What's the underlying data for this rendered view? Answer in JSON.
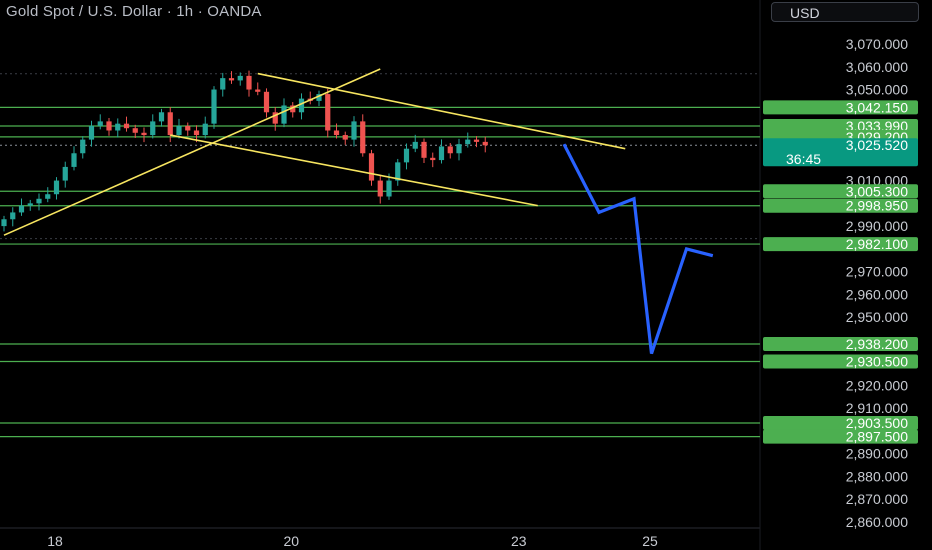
{
  "header": {
    "title": "Gold Spot / U.S. Dollar · 1h · OANDA",
    "currency": "USD"
  },
  "colors": {
    "background": "#000000",
    "up": "#26a69a",
    "down": "#ef5350",
    "level_line": "#4caf50",
    "tag": "#4caf50",
    "last_tag": "#089981",
    "trend": "#f7e560",
    "projection": "#2962ff"
  },
  "chart_data": {
    "type": "candlestick",
    "y_ticks": [
      "3,070.000",
      "3,060.000",
      "3,050.000",
      "3,010.000",
      "2,990.000",
      "2,970.000",
      "2,960.000",
      "2,950.000",
      "2,920.000",
      "2,910.000",
      "2,890.000",
      "2,880.000",
      "2,870.000",
      "2,860.000"
    ],
    "y_tick_values": [
      3070,
      3060,
      3050,
      3010,
      2990,
      2970,
      2960,
      2950,
      2920,
      2910,
      2890,
      2880,
      2870,
      2860
    ],
    "x_labels": [
      {
        "label": "18",
        "index": 4
      },
      {
        "label": "20",
        "index": 31
      },
      {
        "label": "23",
        "index": 57
      },
      {
        "label": "25",
        "index": 72
      }
    ],
    "levels": [
      {
        "value": 3042.15,
        "label": "3,042.150"
      },
      {
        "value": 3033.99,
        "label": "3,033.990"
      },
      {
        "value": 3029.2,
        "label": "3,029.200"
      },
      {
        "value": 3005.3,
        "label": "3,005.300"
      },
      {
        "value": 2998.95,
        "label": "2,998.950"
      },
      {
        "value": 2982.1,
        "label": "2,982.100"
      },
      {
        "value": 2938.2,
        "label": "2,938.200"
      },
      {
        "value": 2930.5,
        "label": "2,930.500"
      },
      {
        "value": 2903.5,
        "label": "2,903.500"
      },
      {
        "value": 2897.5,
        "label": "2,897.500"
      }
    ],
    "last_price": {
      "value": 3025.52,
      "label": "3,025.520",
      "countdown": "36:45"
    },
    "close_series": [
      2993,
      2996,
      2999,
      3000,
      3002,
      3004,
      3010,
      3016,
      3022,
      3028,
      3034,
      3036,
      3032,
      3035,
      3033,
      3031,
      3030,
      3036,
      3040,
      3030,
      3034,
      3032,
      3030,
      3035,
      3050,
      3055,
      3054,
      3056,
      3050,
      3049,
      3040,
      3035,
      3043,
      3040,
      3046,
      3045,
      3048,
      3032,
      3030,
      3028,
      3036,
      3022,
      3010,
      3003,
      3010,
      3018,
      3024,
      3027,
      3020,
      3019,
      3025,
      3022,
      3026,
      3028,
      3027,
      3025.5
    ],
    "trendlines": [
      {
        "from": [
          0,
          2986
        ],
        "to": [
          43,
          3059
        ]
      },
      {
        "from": [
          29,
          3057
        ],
        "to": [
          71,
          3024
        ]
      },
      {
        "from": [
          19,
          3030
        ],
        "to": [
          61,
          2999
        ]
      }
    ],
    "projection": [
      [
        64,
        3026
      ],
      [
        68,
        2996
      ],
      [
        72,
        3002
      ],
      [
        74,
        2934
      ],
      [
        78,
        2980
      ],
      [
        81,
        2977
      ]
    ]
  }
}
